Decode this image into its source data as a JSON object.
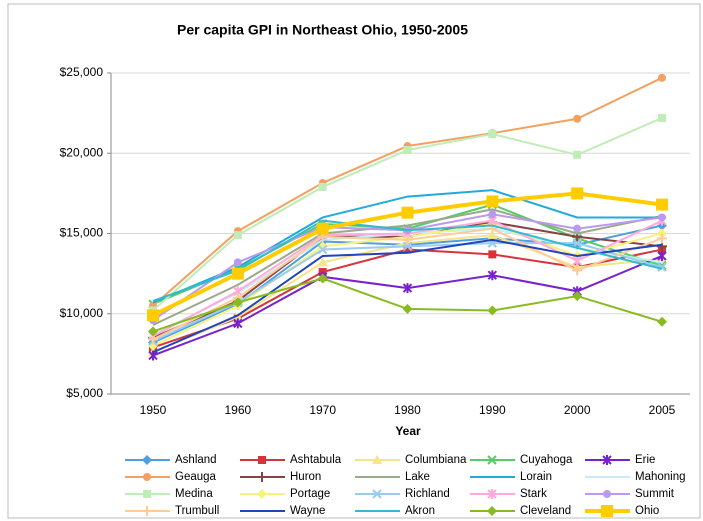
{
  "chart_data": {
    "type": "line",
    "title": "Per capita GPI in Northeast Ohio, 1950-2005",
    "xlabel": "Year",
    "categories": [
      "1950",
      "1960",
      "1970",
      "1980",
      "1990",
      "2000",
      "2005"
    ],
    "ylim": [
      5000,
      25000
    ],
    "yticks": [
      {
        "value": 5000,
        "label": "$5,000"
      },
      {
        "value": 10000,
        "label": "$10,000"
      },
      {
        "value": 15000,
        "label": "$15,000"
      },
      {
        "value": 20000,
        "label": "$20,000"
      },
      {
        "value": 25000,
        "label": "$25,000"
      }
    ],
    "grid": true,
    "legend": "bottom",
    "series": [
      {
        "name": "Ashland",
        "color": "#4f9fdf",
        "marker": "diamond",
        "values": [
          8200,
          10600,
          14500,
          14300,
          14700,
          14300,
          15500
        ]
      },
      {
        "name": "Ashtabula",
        "color": "#d6343a",
        "marker": "square",
        "values": [
          7900,
          9700,
          12600,
          14000,
          13700,
          12900,
          14000
        ]
      },
      {
        "name": "Columbiana",
        "color": "#f5e48a",
        "marker": "triangle",
        "values": [
          7600,
          9800,
          13200,
          14400,
          14900,
          12900,
          13400
        ]
      },
      {
        "name": "Cuyahoga",
        "color": "#55cc66",
        "marker": "x",
        "values": [
          10600,
          12800,
          15600,
          15300,
          16800,
          14700,
          13000
        ]
      },
      {
        "name": "Erie",
        "color": "#7722cc",
        "marker": "star",
        "values": [
          7400,
          9400,
          12300,
          11600,
          12400,
          11400,
          13600
        ]
      },
      {
        "name": "Geauga",
        "color": "#f4a060",
        "marker": "circle",
        "values": [
          10500,
          15150,
          18150,
          20450,
          21250,
          22150,
          24700
        ]
      },
      {
        "name": "Huron",
        "color": "#884444",
        "marker": "plus",
        "values": [
          8500,
          10800,
          14800,
          14800,
          15700,
          14800,
          14200
        ]
      },
      {
        "name": "Lake",
        "color": "#99aa88",
        "marker": "none",
        "values": [
          9300,
          11800,
          15000,
          15500,
          16500,
          15000,
          16100
        ]
      },
      {
        "name": "Lorain",
        "color": "#22aadd",
        "marker": "none",
        "values": [
          10700,
          12900,
          16000,
          17300,
          17700,
          16000,
          16000
        ]
      },
      {
        "name": "Mahoning",
        "color": "#c6ecfa",
        "marker": "none",
        "values": [
          8700,
          11300,
          14600,
          15000,
          15300,
          14100,
          13200
        ]
      },
      {
        "name": "Medina",
        "color": "#c0ecb8",
        "marker": "square",
        "values": [
          10200,
          14900,
          17900,
          20200,
          21200,
          19900,
          22200
        ]
      },
      {
        "name": "Portage",
        "color": "#f7f27a",
        "marker": "diamond",
        "values": [
          8000,
          10500,
          14200,
          14800,
          15600,
          13600,
          15000
        ]
      },
      {
        "name": "Richland",
        "color": "#99ccee",
        "marker": "x",
        "values": [
          8300,
          10700,
          14000,
          14200,
          14400,
          14400,
          12900
        ]
      },
      {
        "name": "Stark",
        "color": "#ffaadd",
        "marker": "star",
        "values": [
          8600,
          11400,
          14900,
          15000,
          15800,
          13300,
          15800
        ]
      },
      {
        "name": "Summit",
        "color": "#bb99ee",
        "marker": "circle",
        "values": [
          9600,
          13200,
          15400,
          15200,
          16200,
          15300,
          16000
        ]
      },
      {
        "name": "Trumbull",
        "color": "#ffcc99",
        "marker": "plus",
        "values": [
          8400,
          11000,
          14800,
          14600,
          15300,
          12700,
          14700
        ]
      },
      {
        "name": "Wayne",
        "color": "#2244bb",
        "marker": "none",
        "values": [
          7600,
          9900,
          13600,
          13800,
          14600,
          13600,
          14300
        ]
      },
      {
        "name": "Akron",
        "color": "#33bbcc",
        "marker": "none",
        "values": [
          10800,
          12700,
          15800,
          15200,
          15500,
          14100,
          12800
        ]
      },
      {
        "name": "Cleveland",
        "color": "#88bb22",
        "marker": "diamond",
        "values": [
          8900,
          10700,
          12200,
          10300,
          10200,
          11100,
          9500
        ]
      },
      {
        "name": "Ohio",
        "color": "#ffcc00",
        "marker": "bigsquare",
        "values": [
          9900,
          12500,
          15300,
          16300,
          17000,
          17500,
          16800
        ]
      }
    ]
  }
}
